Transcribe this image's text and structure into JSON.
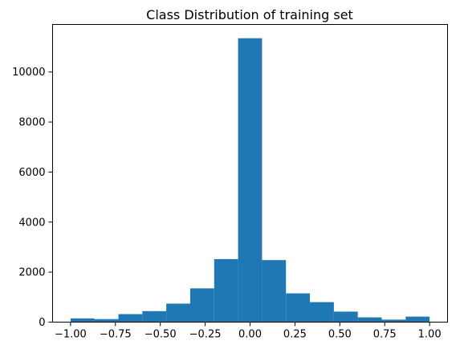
{
  "chart_data": {
    "type": "bar",
    "title": "Class Distribution of training set",
    "xlabel": "",
    "ylabel": "",
    "xlim": [
      -1.1,
      1.1
    ],
    "ylim": [
      0,
      11900
    ],
    "grid": false,
    "legend": "none",
    "bar_color": "#1f77b4",
    "bins": [
      {
        "x0": -1.0,
        "x1": -0.8667,
        "count": 150
      },
      {
        "x0": -0.8667,
        "x1": -0.7333,
        "count": 120
      },
      {
        "x0": -0.7333,
        "x1": -0.6,
        "count": 320
      },
      {
        "x0": -0.6,
        "x1": -0.4667,
        "count": 440
      },
      {
        "x0": -0.4667,
        "x1": -0.3333,
        "count": 740
      },
      {
        "x0": -0.3333,
        "x1": -0.2,
        "count": 1350
      },
      {
        "x0": -0.2,
        "x1": -0.0667,
        "count": 2520
      },
      {
        "x0": -0.0667,
        "x1": 0.0667,
        "count": 11350
      },
      {
        "x0": 0.0667,
        "x1": 0.2,
        "count": 2480
      },
      {
        "x0": 0.2,
        "x1": 0.3333,
        "count": 1150
      },
      {
        "x0": 0.3333,
        "x1": 0.4667,
        "count": 800
      },
      {
        "x0": 0.4667,
        "x1": 0.6,
        "count": 420
      },
      {
        "x0": 0.6,
        "x1": 0.7333,
        "count": 190
      },
      {
        "x0": 0.7333,
        "x1": 0.8667,
        "count": 100
      },
      {
        "x0": 0.8667,
        "x1": 1.0,
        "count": 220
      }
    ],
    "x_ticks": [
      {
        "value": -1.0,
        "label": "−1.00"
      },
      {
        "value": -0.75,
        "label": "−0.75"
      },
      {
        "value": -0.5,
        "label": "−0.50"
      },
      {
        "value": -0.25,
        "label": "−0.25"
      },
      {
        "value": 0.0,
        "label": "0.00"
      },
      {
        "value": 0.25,
        "label": "0.25"
      },
      {
        "value": 0.5,
        "label": "0.50"
      },
      {
        "value": 0.75,
        "label": "0.75"
      },
      {
        "value": 1.0,
        "label": "1.00"
      }
    ],
    "y_ticks": [
      {
        "value": 0,
        "label": "0"
      },
      {
        "value": 2000,
        "label": "2000"
      },
      {
        "value": 4000,
        "label": "4000"
      },
      {
        "value": 6000,
        "label": "6000"
      },
      {
        "value": 8000,
        "label": "8000"
      },
      {
        "value": 10000,
        "label": "10000"
      }
    ]
  }
}
